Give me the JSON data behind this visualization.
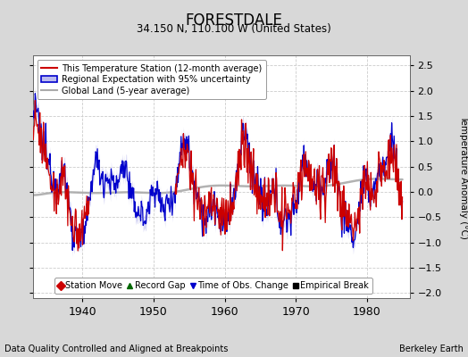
{
  "title": "FORESTDALE",
  "subtitle": "34.150 N, 110.100 W (United States)",
  "xlabel_left": "Data Quality Controlled and Aligned at Breakpoints",
  "xlabel_right": "Berkeley Earth",
  "ylabel": "Temperature Anomaly (°C)",
  "ylim": [
    -2.1,
    2.7
  ],
  "yticks": [
    -2,
    -1.5,
    -1,
    -0.5,
    0,
    0.5,
    1,
    1.5,
    2,
    2.5
  ],
  "xlim": [
    1933,
    1986
  ],
  "xticks": [
    1940,
    1950,
    1960,
    1970,
    1980
  ],
  "background_color": "#d8d8d8",
  "plot_bg_color": "#ffffff",
  "red_color": "#cc0000",
  "blue_color": "#0000cc",
  "blue_fill_color": "#bbbbee",
  "gray_color": "#aaaaaa",
  "legend_labels": [
    "This Temperature Station (12-month average)",
    "Regional Expectation with 95% uncertainty",
    "Global Land (5-year average)"
  ],
  "marker_legend": [
    {
      "marker": "D",
      "color": "#cc0000",
      "label": "Station Move"
    },
    {
      "marker": "^",
      "color": "#006600",
      "label": "Record Gap"
    },
    {
      "marker": "v",
      "color": "#0000cc",
      "label": "Time of Obs. Change"
    },
    {
      "marker": "s",
      "color": "#000000",
      "label": "Empirical Break"
    }
  ]
}
